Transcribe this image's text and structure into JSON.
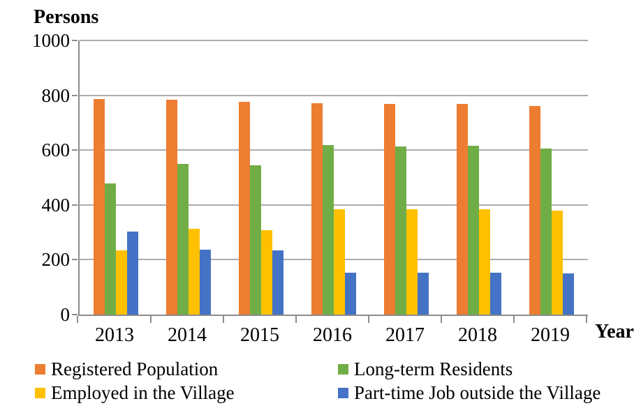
{
  "chart_data": {
    "type": "bar",
    "title": "",
    "y_axis_title": "Persons",
    "x_axis_title": "Year",
    "categories": [
      "2013",
      "2014",
      "2015",
      "2016",
      "2017",
      "2018",
      "2019"
    ],
    "series": [
      {
        "name": "Registered Population",
        "color": "#ED7D31",
        "values": [
          786,
          783,
          776,
          771,
          768,
          768,
          760
        ]
      },
      {
        "name": "Long-term Residents",
        "color": "#70AD47",
        "values": [
          478,
          549,
          544,
          618,
          613,
          616,
          606
        ]
      },
      {
        "name": "Employed in the Village",
        "color": "#FFC000",
        "values": [
          235,
          313,
          308,
          384,
          384,
          384,
          379
        ]
      },
      {
        "name": "Part-time Job outside the Village",
        "color": "#4472C4",
        "values": [
          303,
          237,
          234,
          152,
          152,
          152,
          151
        ]
      }
    ],
    "ylim": [
      0,
      1000
    ],
    "y_ticks": [
      0,
      200,
      400,
      600,
      800,
      1000
    ],
    "grid": true,
    "legend_position": "bottom-two-columns"
  },
  "style": {
    "grid_color": "#ACACAC",
    "axis_color": "#8C8C8C",
    "text_color": "#000000",
    "background": "#FFFFFF"
  }
}
